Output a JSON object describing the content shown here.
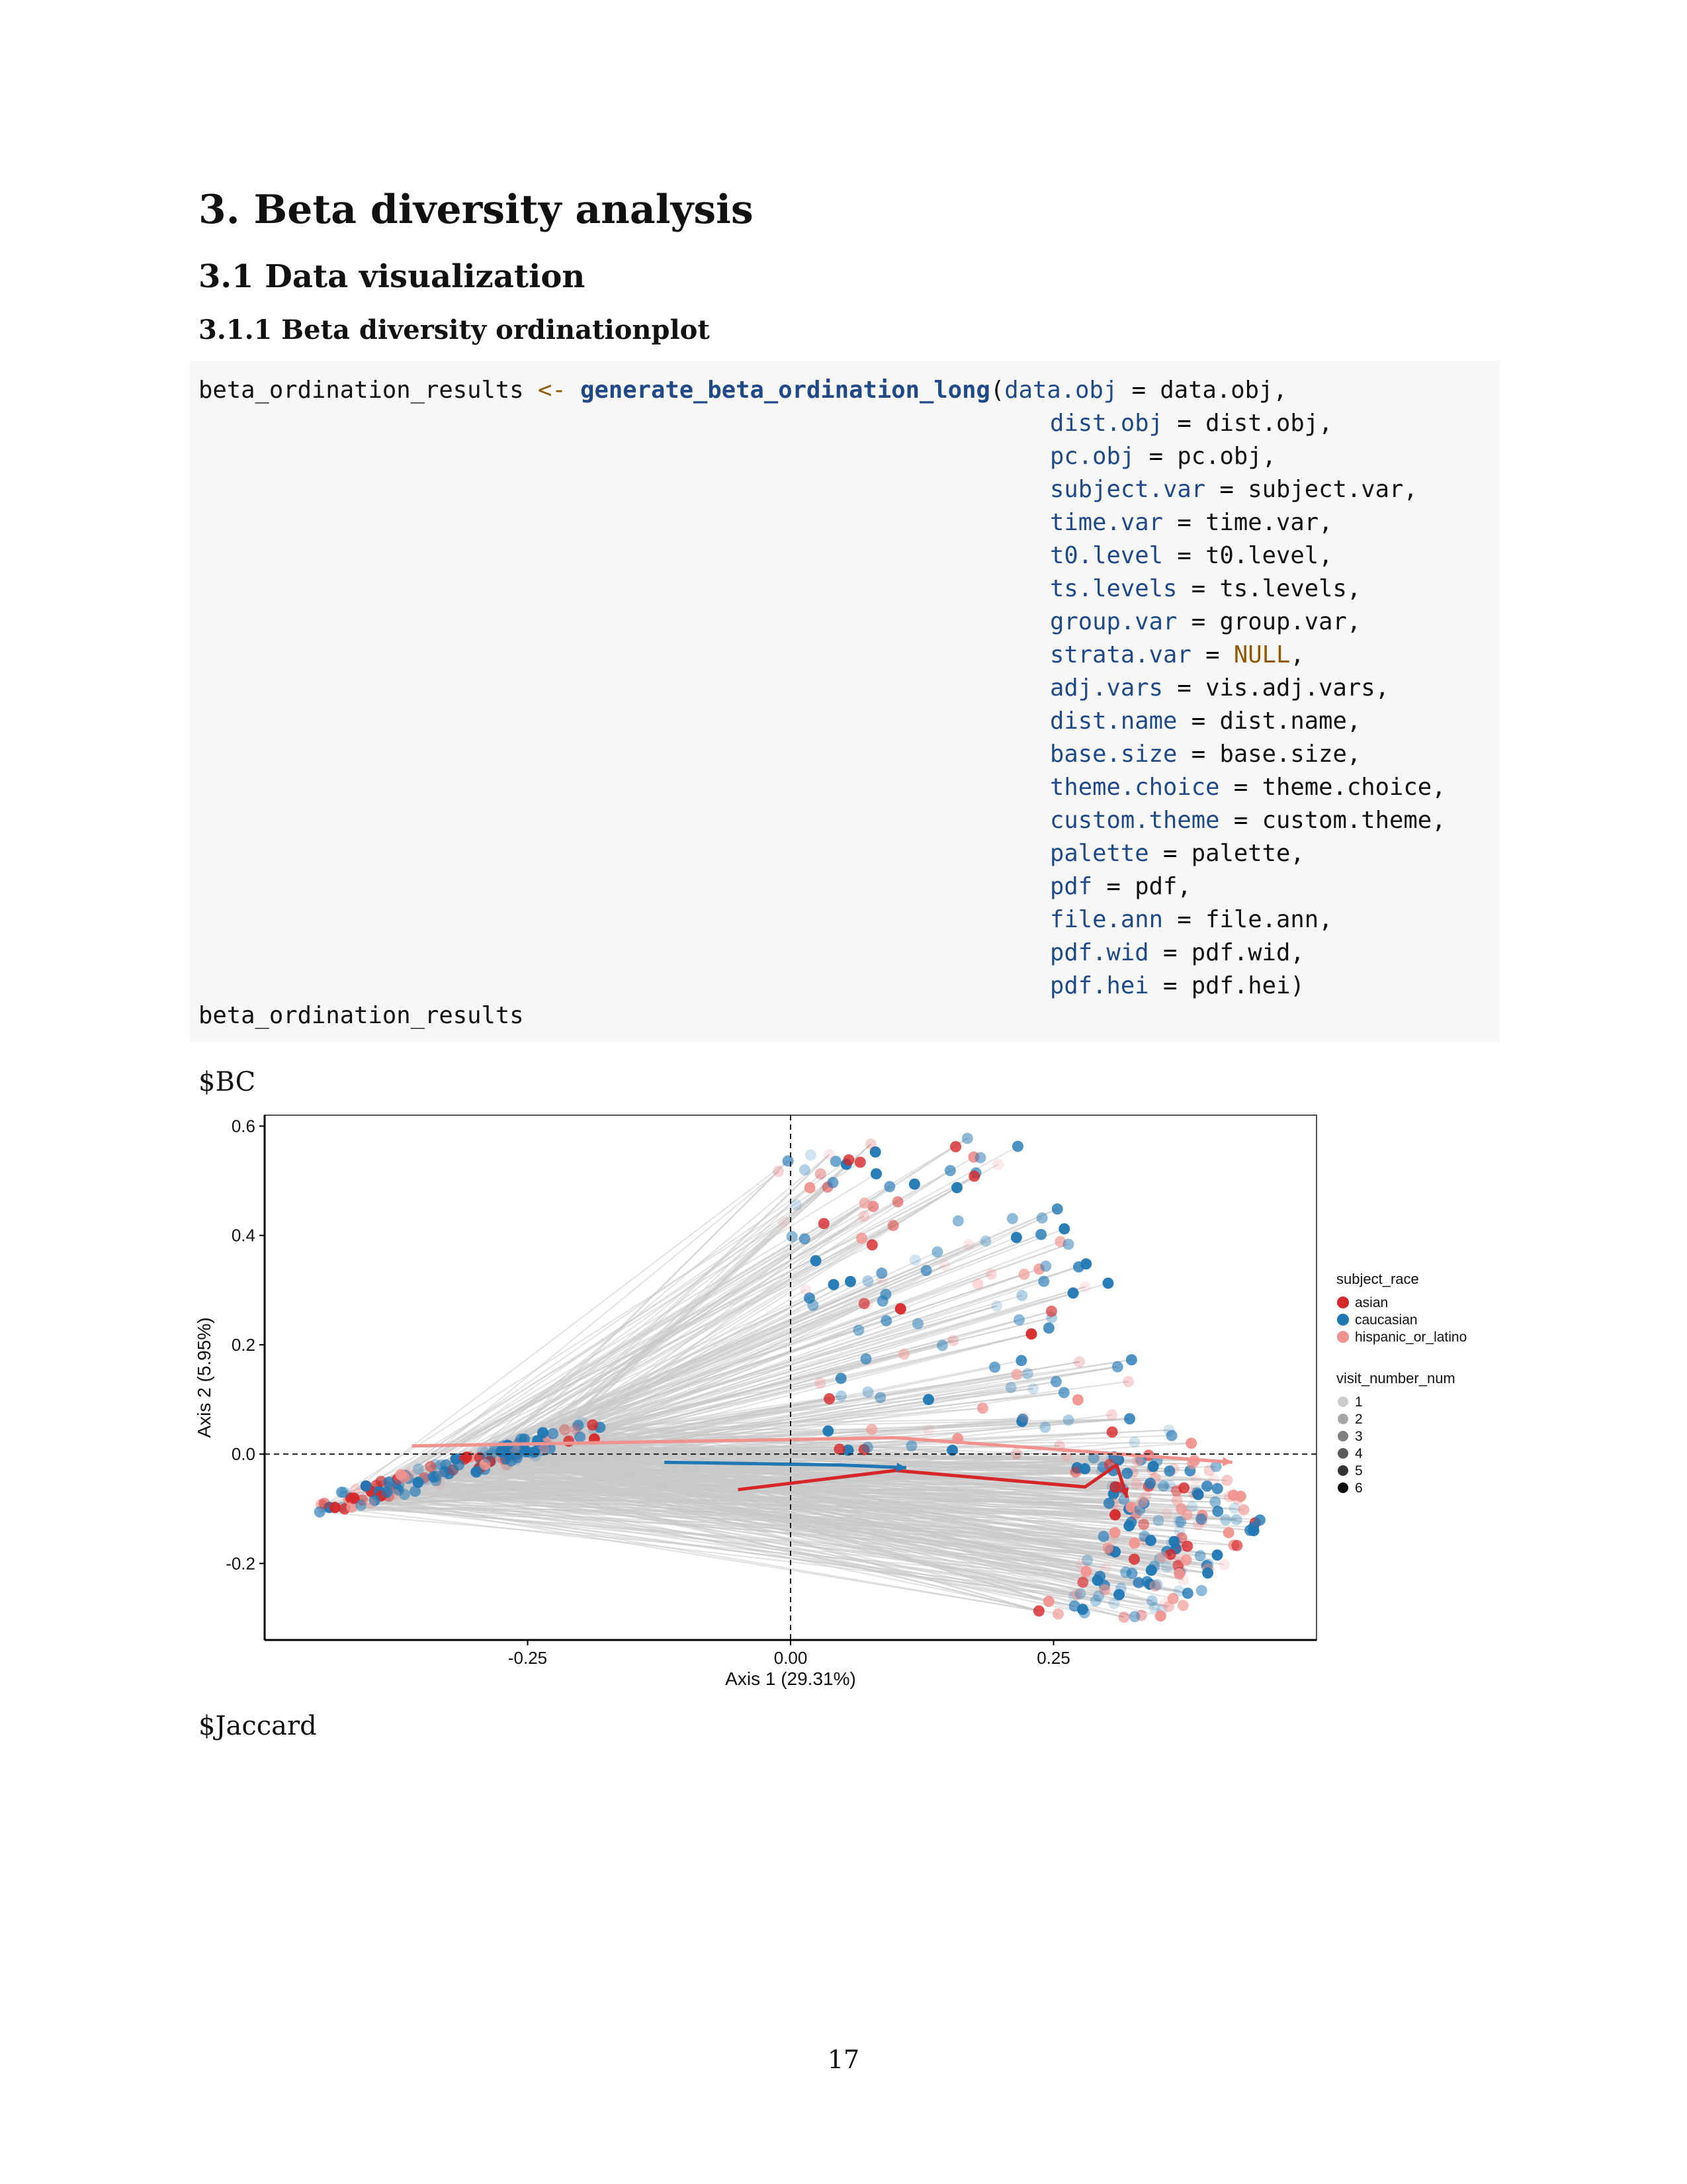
{
  "section": {
    "title": "3. Beta diversity analysis",
    "subtitle": "3.1 Data visualization",
    "subsubtitle": "3.1.1 Beta diversity ordinationplot"
  },
  "code": {
    "lhs": "beta_ordination_results",
    "assign": "<-",
    "fn": "generate_beta_ordination_long",
    "args": [
      {
        "name": "data.obj",
        "value": "data.obj",
        "end": ","
      },
      {
        "name": "dist.obj",
        "value": "dist.obj",
        "end": ","
      },
      {
        "name": "pc.obj",
        "value": "pc.obj",
        "end": ","
      },
      {
        "name": "subject.var",
        "value": "subject.var",
        "end": ","
      },
      {
        "name": "time.var",
        "value": "time.var",
        "end": ","
      },
      {
        "name": "t0.level",
        "value": "t0.level",
        "end": ","
      },
      {
        "name": "ts.levels",
        "value": "ts.levels",
        "end": ","
      },
      {
        "name": "group.var",
        "value": "group.var",
        "end": ","
      },
      {
        "name": "strata.var",
        "value": "NULL",
        "end": ",",
        "is_null": true
      },
      {
        "name": "adj.vars",
        "value": "vis.adj.vars",
        "end": ","
      },
      {
        "name": "dist.name",
        "value": "dist.name",
        "end": ","
      },
      {
        "name": "base.size",
        "value": "base.size",
        "end": ","
      },
      {
        "name": "theme.choice",
        "value": "theme.choice",
        "end": ","
      },
      {
        "name": "custom.theme",
        "value": "custom.theme",
        "end": ","
      },
      {
        "name": "palette",
        "value": "palette",
        "end": ","
      },
      {
        "name": "pdf",
        "value": "pdf",
        "end": ","
      },
      {
        "name": "file.ann",
        "value": "file.ann",
        "end": ","
      },
      {
        "name": "pdf.wid",
        "value": "pdf.wid",
        "end": ","
      },
      {
        "name": "pdf.hei",
        "value": "pdf.hei",
        "end": ")"
      }
    ],
    "final_line": "beta_ordination_results"
  },
  "outputs": {
    "bc_label": "$BC",
    "jaccard_label": "$Jaccard"
  },
  "page_number": "17",
  "colors": {
    "asian": "#d62728",
    "caucasian": "#1f77b4",
    "hispanic_or_latino": "#f0938f",
    "lines": "#c8c8c8"
  },
  "chart_data": {
    "type": "scatter",
    "title": "",
    "xlabel": "Axis 1 (29.31%)",
    "ylabel": "Axis 2 (5.95%)",
    "xlim": [
      -0.5,
      0.5
    ],
    "ylim": [
      -0.34,
      0.62
    ],
    "x_ticks": [
      -0.25,
      0.0,
      0.25
    ],
    "x_tick_labels": [
      "-0.25",
      "0.00",
      "0.25"
    ],
    "y_ticks": [
      -0.2,
      0.0,
      0.2,
      0.4,
      0.6
    ],
    "y_tick_labels": [
      "-0.2",
      "0.0",
      "0.2",
      "0.4",
      "0.6"
    ],
    "grid": false,
    "reference_lines": {
      "x": 0.0,
      "y": 0.0,
      "style": "dashed"
    },
    "legend_position": "right",
    "legends": [
      {
        "title": "subject_race",
        "entries": [
          "asian",
          "caucasian",
          "hispanic_or_latino"
        ]
      },
      {
        "title": "visit_number_num",
        "entries": [
          "1",
          "2",
          "3",
          "4",
          "5",
          "6"
        ]
      }
    ],
    "group_trajectories": [
      {
        "name": "asian",
        "points": [
          [
            -0.05,
            -0.065
          ],
          [
            0.1,
            -0.03
          ],
          [
            0.28,
            -0.06
          ],
          [
            0.31,
            -0.02
          ],
          [
            0.32,
            -0.08
          ]
        ]
      },
      {
        "name": "caucasian",
        "points": [
          [
            -0.12,
            -0.015
          ],
          [
            0.05,
            -0.02
          ],
          [
            0.11,
            -0.025
          ]
        ]
      },
      {
        "name": "hispanic_or_latino",
        "points": [
          [
            -0.36,
            0.015
          ],
          [
            0.1,
            0.03
          ],
          [
            0.42,
            -0.015
          ]
        ]
      }
    ],
    "clusters": [
      {
        "name": "left_cluster",
        "x_range": [
          -0.45,
          -0.18
        ],
        "y_range": [
          -0.1,
          0.07
        ],
        "points": 140
      },
      {
        "name": "right_cluster",
        "x_range": [
          0.28,
          0.45
        ],
        "y_range": [
          -0.3,
          0.0
        ],
        "points": 180
      },
      {
        "name": "upper_fan",
        "x_range": [
          -0.02,
          0.4
        ],
        "y_range": [
          0.0,
          0.58
        ],
        "points": 140
      }
    ],
    "visit_alpha_levels": [
      0.2,
      0.35,
      0.5,
      0.65,
      0.8,
      0.95
    ]
  }
}
